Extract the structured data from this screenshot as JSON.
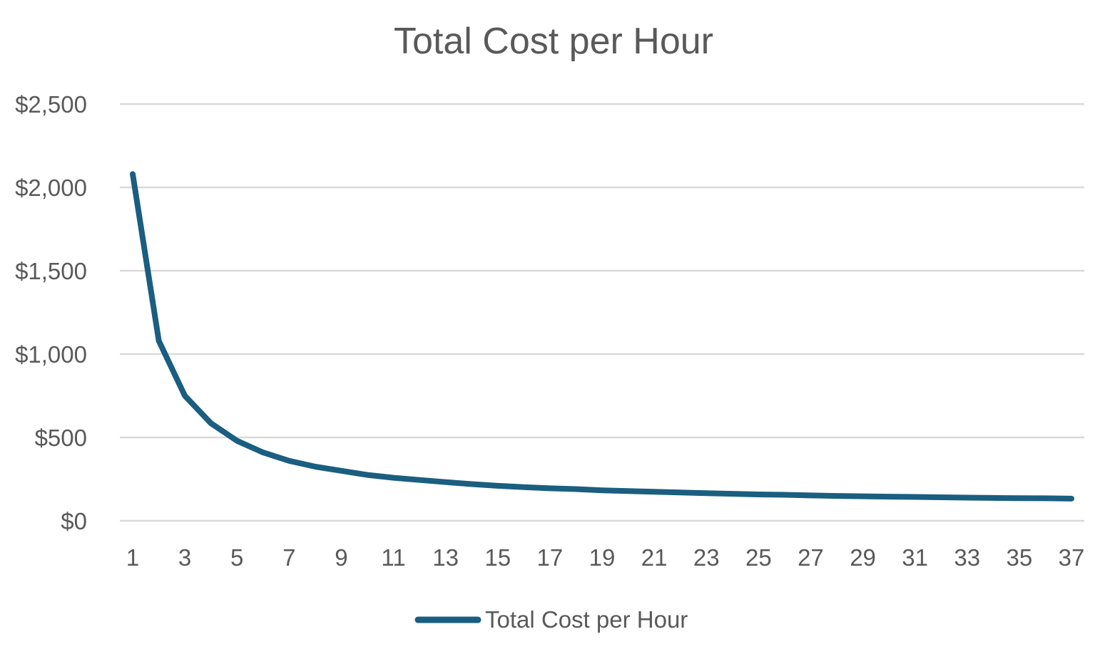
{
  "chart_data": {
    "type": "line",
    "title": "Total Cost per Hour",
    "xlabel": "",
    "ylabel": "",
    "x": [
      1,
      2,
      3,
      4,
      5,
      6,
      7,
      8,
      9,
      10,
      11,
      12,
      13,
      14,
      15,
      16,
      17,
      18,
      19,
      20,
      21,
      22,
      23,
      24,
      25,
      26,
      27,
      28,
      29,
      30,
      31,
      32,
      33,
      34,
      35,
      36,
      37
    ],
    "x_tick_labels": [
      "1",
      "3",
      "5",
      "7",
      "9",
      "11",
      "13",
      "15",
      "17",
      "19",
      "21",
      "23",
      "25",
      "27",
      "29",
      "31",
      "33",
      "35",
      "37"
    ],
    "y_tick_labels": [
      "$0",
      "$500",
      "$1,000",
      "$1,500",
      "$2,000",
      "$2,500"
    ],
    "ylim": [
      0,
      2500
    ],
    "y_ticks": [
      0,
      500,
      1000,
      1500,
      2000,
      2500
    ],
    "grid": true,
    "legend_position": "bottom",
    "series": [
      {
        "name": "Total Cost per Hour",
        "color": "#1a5e80",
        "values": [
          2080,
          1080,
          750,
          585,
          480,
          410,
          360,
          325,
          300,
          275,
          258,
          245,
          232,
          220,
          210,
          202,
          195,
          190,
          183,
          178,
          174,
          170,
          166,
          162,
          158,
          156,
          152,
          149,
          147,
          145,
          143,
          141,
          139,
          137,
          136,
          135,
          133
        ]
      }
    ]
  }
}
